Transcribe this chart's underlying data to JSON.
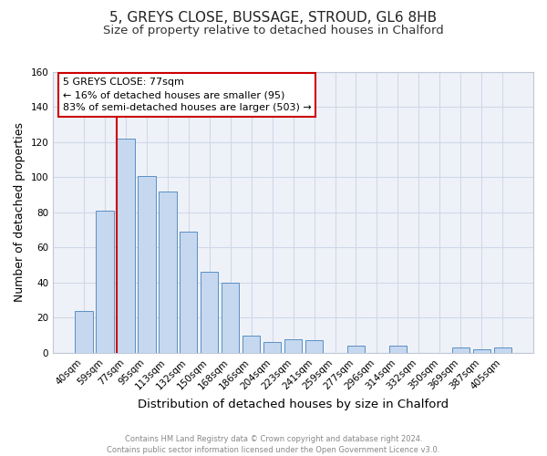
{
  "title_line1": "5, GREYS CLOSE, BUSSAGE, STROUD, GL6 8HB",
  "title_line2": "Size of property relative to detached houses in Chalford",
  "xlabel": "Distribution of detached houses by size in Chalford",
  "ylabel": "Number of detached properties",
  "bar_labels": [
    "40sqm",
    "59sqm",
    "77sqm",
    "95sqm",
    "113sqm",
    "132sqm",
    "150sqm",
    "168sqm",
    "186sqm",
    "204sqm",
    "223sqm",
    "241sqm",
    "259sqm",
    "277sqm",
    "296sqm",
    "314sqm",
    "332sqm",
    "350sqm",
    "369sqm",
    "387sqm",
    "405sqm"
  ],
  "bar_values": [
    24,
    81,
    122,
    101,
    92,
    69,
    46,
    40,
    10,
    6,
    8,
    7,
    0,
    4,
    0,
    4,
    0,
    0,
    3,
    2,
    3
  ],
  "bar_color": "#c5d8f0",
  "bar_edge_color": "#5a8fc3",
  "highlight_index": 2,
  "highlight_line_color": "#cc0000",
  "ylim": [
    0,
    160
  ],
  "yticks": [
    0,
    20,
    40,
    60,
    80,
    100,
    120,
    140,
    160
  ],
  "background_color": "#eef2f8",
  "grid_color": "#d0d8e8",
  "annotation_text": "5 GREYS CLOSE: 77sqm\n← 16% of detached houses are smaller (95)\n83% of semi-detached houses are larger (503) →",
  "annotation_box_color": "#ffffff",
  "annotation_border_color": "#cc0000",
  "footer_line1": "Contains HM Land Registry data © Crown copyright and database right 2024.",
  "footer_line2": "Contains public sector information licensed under the Open Government Licence v3.0.",
  "title_fontsize": 11,
  "subtitle_fontsize": 9.5,
  "tick_fontsize": 7.5,
  "ylabel_fontsize": 9,
  "xlabel_fontsize": 9.5,
  "footer_fontsize": 6.0
}
